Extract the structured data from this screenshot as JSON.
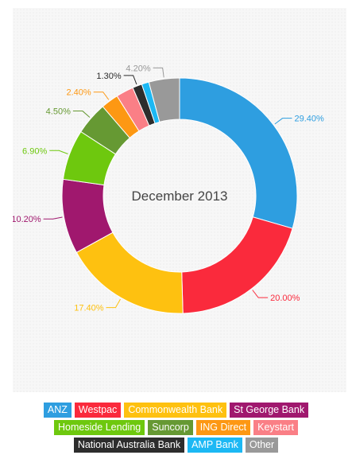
{
  "chart_data": {
    "type": "pie",
    "center_label": "December 2013",
    "slices": [
      {
        "name": "ANZ",
        "value": 29.4,
        "label": "29.40%",
        "color": "#2e9ee0"
      },
      {
        "name": "Westpac",
        "value": 20.0,
        "label": "20.00%",
        "color": "#fa2a3c"
      },
      {
        "name": "Commonwealth Bank",
        "value": 17.4,
        "label": "17.40%",
        "color": "#fec110"
      },
      {
        "name": "St George Bank",
        "value": 10.2,
        "label": "10.20%",
        "color": "#a0186e"
      },
      {
        "name": "Homeside Lending",
        "value": 6.9,
        "label": "6.90%",
        "color": "#6ec80e"
      },
      {
        "name": "Suncorp",
        "value": 4.5,
        "label": "4.50%",
        "color": "#669933"
      },
      {
        "name": "ING Direct",
        "value": 2.4,
        "label": "2.40%",
        "color": "#fd9813"
      },
      {
        "name": "Keystart",
        "value": 2.4,
        "label": "",
        "color": "#fa7f86"
      },
      {
        "name": "National Australia Bank",
        "value": 1.3,
        "label": "1.30%",
        "color": "#2d2d2d"
      },
      {
        "name": "AMP Bank",
        "value": 1.0,
        "label": "",
        "color": "#1cb8f4"
      },
      {
        "name": "Other",
        "value": 4.2,
        "label": "4.20%",
        "color": "#999999"
      }
    ],
    "legend": {
      "rows": [
        [
          "ANZ",
          "Westpac",
          "Commonwealth Bank",
          "St George Bank"
        ],
        [
          "Homeside Lending",
          "Suncorp",
          "ING Direct",
          "Keystart"
        ],
        [
          "National Australia Bank",
          "AMP Bank",
          "Other"
        ]
      ],
      "placement": "bottom"
    }
  }
}
